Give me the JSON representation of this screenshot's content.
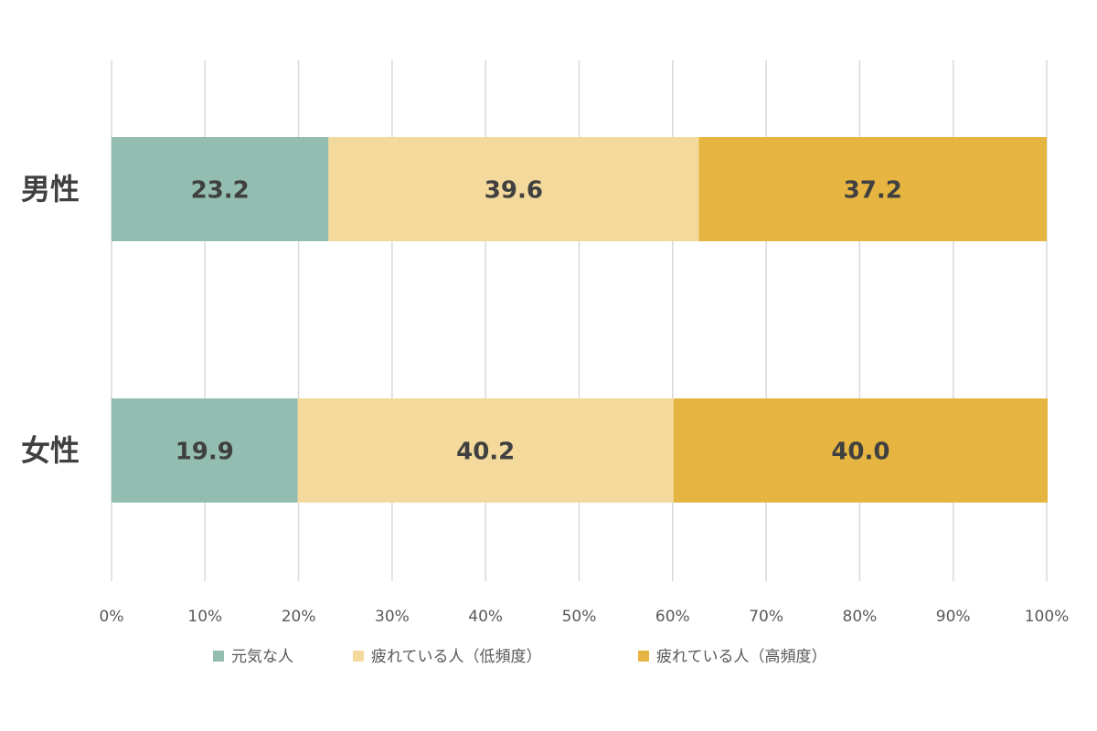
{
  "chart_data": {
    "type": "bar",
    "orientation": "horizontal",
    "stacked": "percent",
    "categories": [
      "男性",
      "女性"
    ],
    "series": [
      {
        "name": "元気な人",
        "values": [
          23.2,
          19.9
        ],
        "color": "#93bdb0"
      },
      {
        "name": "疲れている人（低頻度）",
        "values": [
          39.6,
          40.2
        ],
        "color": "#f3d99b"
      },
      {
        "name": "疲れている人（高頻度）",
        "values": [
          37.2,
          40.0
        ],
        "color": "#e6b440"
      }
    ],
    "data_labels": [
      [
        "23.2",
        "19.9"
      ],
      [
        "39.6",
        "40.2"
      ],
      [
        "37.2",
        "40.0"
      ]
    ],
    "xlim": [
      0,
      100
    ],
    "x_ticks": [
      "0%",
      "10%",
      "20%",
      "30%",
      "40%",
      "50%",
      "60%",
      "70%",
      "80%",
      "90%",
      "100%"
    ],
    "grid": "vertical",
    "legend_position": "bottom"
  }
}
